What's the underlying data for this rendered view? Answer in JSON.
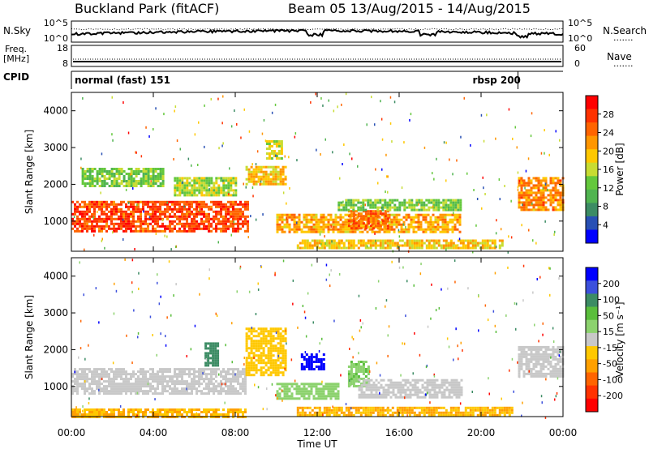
{
  "header": {
    "station": "Buckland Park (fitACF)",
    "beam_info": "Beam 05  13/Aug/2015 - 14/Aug/2015"
  },
  "strips": {
    "nsky_label": "N.Sky",
    "nsearch_label": "N.Search",
    "freq_label_1": "Freq.",
    "freq_label_2": "[MHz]",
    "nave_label": "Nave",
    "cpid_label": "CPID",
    "dotted_key": ".......",
    "noise_ticks_left": [
      "10^5",
      "10^0"
    ],
    "noise_ticks_right": [
      "10^5",
      "10^0"
    ],
    "freq_ticks": [
      "18",
      "8"
    ],
    "nave_ticks": [
      "60",
      "0"
    ],
    "cpid_segments": [
      {
        "label": "normal (fast) 151",
        "start_hour": 0,
        "end_hour": 21.8
      },
      {
        "label": "rbsp 200",
        "start_hour": 21.8,
        "end_hour": 24
      }
    ]
  },
  "colors": {
    "power_scale": [
      "#0000ff",
      "#2850b4",
      "#3c8c64",
      "#50b450",
      "#64c83c",
      "#c8dc32",
      "#ffc800",
      "#ff9600",
      "#ff6400",
      "#ff3200",
      "#ff0000"
    ],
    "velocity_scale": [
      "#0000ff",
      "#3c50dc",
      "#3c8c64",
      "#5abe3c",
      "#8cd26e",
      "#c8c8c8",
      "#ffc800",
      "#ffa000",
      "#ff6400",
      "#ff3200",
      "#ff0000"
    ],
    "ground_scatter": "#c8c8c8"
  },
  "chart_data": [
    {
      "type": "heatmap",
      "name": "power",
      "ylabel": "Slant Range [km]",
      "yticks": [
        "4000",
        "3000",
        "2000",
        "1000"
      ],
      "xticks": [
        "00:00",
        "04:00",
        "08:00",
        "12:00",
        "16:00",
        "20:00",
        "00:00"
      ],
      "xlim": [
        0,
        24
      ],
      "ylim": [
        180,
        4500
      ],
      "colorbar": {
        "label": "Power [dB]",
        "ticks": [
          "28",
          "24",
          "20",
          "16",
          "12",
          "8",
          "4"
        ],
        "range": [
          0,
          30
        ]
      },
      "regions": [
        {
          "t": [
            0.0,
            8.6
          ],
          "r": [
            700,
            1550
          ],
          "level": 26
        },
        {
          "t": [
            0.5,
            4.5
          ],
          "r": [
            1950,
            2450
          ],
          "level": 12
        },
        {
          "t": [
            5.0,
            8.0
          ],
          "r": [
            1700,
            2200
          ],
          "level": 14
        },
        {
          "t": [
            8.5,
            10.5
          ],
          "r": [
            2000,
            2500
          ],
          "level": 18
        },
        {
          "t": [
            9.5,
            10.3
          ],
          "r": [
            2700,
            3200
          ],
          "level": 15
        },
        {
          "t": [
            10.0,
            19.0
          ],
          "r": [
            700,
            1200
          ],
          "level": 20
        },
        {
          "t": [
            13.5,
            15.5
          ],
          "r": [
            800,
            1300
          ],
          "level": 24
        },
        {
          "t": [
            13.0,
            19.0
          ],
          "r": [
            1300,
            1600
          ],
          "level": 12
        },
        {
          "t": [
            11.0,
            21.0
          ],
          "r": [
            250,
            500
          ],
          "level": 18
        },
        {
          "t": [
            21.8,
            24.0
          ],
          "r": [
            1300,
            2200
          ],
          "level": 22
        }
      ]
    },
    {
      "type": "heatmap",
      "name": "velocity",
      "ylabel": "Slant Range [km]",
      "xlabel": "Time UT",
      "yticks": [
        "4000",
        "3000",
        "2000",
        "1000"
      ],
      "xticks": [
        "00:00",
        "04:00",
        "08:00",
        "12:00",
        "16:00",
        "20:00",
        "00:00"
      ],
      "xlim": [
        0,
        24
      ],
      "ylim": [
        180,
        4500
      ],
      "colorbar": {
        "label": "Velocity [m s^-1]",
        "ticks": [
          "200",
          "100",
          "50",
          "15",
          "-15",
          "-50",
          "-100",
          "-200"
        ],
        "range": [
          -200,
          200
        ]
      },
      "regions": [
        {
          "t": [
            0.0,
            8.5
          ],
          "r": [
            800,
            1500
          ],
          "level": 0
        },
        {
          "t": [
            0.0,
            8.5
          ],
          "r": [
            200,
            400
          ],
          "level": -60
        },
        {
          "t": [
            6.5,
            7.2
          ],
          "r": [
            1600,
            2200
          ],
          "level": 120
        },
        {
          "t": [
            8.5,
            10.5
          ],
          "r": [
            1300,
            2600
          ],
          "level": -40
        },
        {
          "t": [
            11.2,
            12.3
          ],
          "r": [
            1500,
            1900
          ],
          "level": 200
        },
        {
          "t": [
            10.0,
            13.0
          ],
          "r": [
            700,
            1100
          ],
          "level": 40
        },
        {
          "t": [
            13.5,
            14.5
          ],
          "r": [
            1000,
            1700
          ],
          "level": 50
        },
        {
          "t": [
            14.0,
            19.0
          ],
          "r": [
            700,
            1200
          ],
          "level": 0
        },
        {
          "t": [
            11.0,
            21.5
          ],
          "r": [
            250,
            450
          ],
          "level": -60
        },
        {
          "t": [
            21.8,
            24.0
          ],
          "r": [
            1300,
            2100
          ],
          "level": 0
        }
      ]
    }
  ],
  "axes": {
    "time_label": "Time UT"
  }
}
